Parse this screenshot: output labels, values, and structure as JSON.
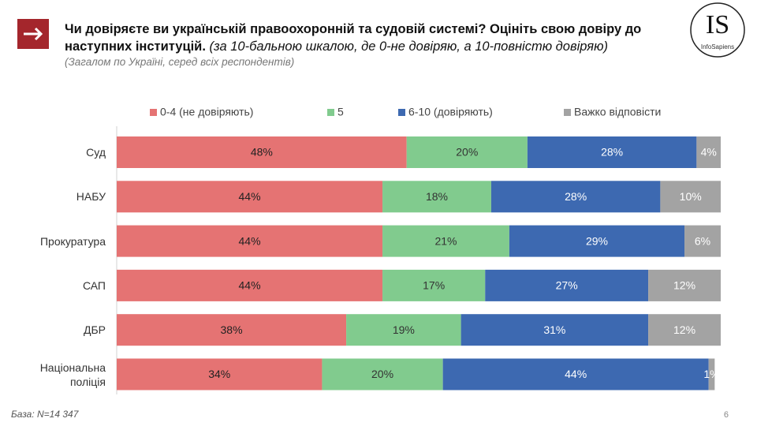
{
  "header": {
    "title": "Чи довіряєте ви українській правоохоронній та судовій системі? Оцініть свою довіру до наступних інституцій.",
    "title_note": "(за 10-бальною шкалою, де 0-не довіряю, а 10-повністю довіряю)",
    "subtitle": "(Загалом по Україні, серед всіх респондентів)",
    "logo": "IS",
    "logo_sub": "InfoSapiens"
  },
  "chart_data": {
    "type": "stacked_bar",
    "orientation": "horizontal",
    "categories": [
      "Суд",
      "НАБУ",
      "Прокуратура",
      "САП",
      "ДБР",
      "Національна поліція"
    ],
    "xlim": [
      0,
      100
    ],
    "series": [
      {
        "name": "0-4 (не довіряють)",
        "color": "#e57373",
        "values": [
          48,
          44,
          44,
          44,
          38,
          34
        ],
        "value_labels": [
          "48%",
          "44%",
          "44%",
          "44%",
          "38%",
          "34%"
        ]
      },
      {
        "name": "5",
        "color": "#81cb8e",
        "values": [
          20,
          18,
          21,
          17,
          19,
          20
        ],
        "value_labels": [
          "20%",
          "18%",
          "21%",
          "17%",
          "19%",
          "20%"
        ]
      },
      {
        "name": "6-10 (довіряють)",
        "color": "#3d69b1",
        "values": [
          28,
          28,
          29,
          27,
          31,
          44
        ],
        "value_labels": [
          "28%",
          "28%",
          "29%",
          "27%",
          "31%",
          "44%"
        ]
      },
      {
        "name": "Важко відповісти",
        "color": "#a3a3a3",
        "values": [
          4,
          10,
          6,
          12,
          12,
          1
        ],
        "value_labels": [
          "4%",
          "10%",
          "6%",
          "12%",
          "12%",
          "1%"
        ]
      }
    ],
    "legend": "top"
  },
  "footer": {
    "base": "База: N=14 347",
    "page": "6"
  }
}
